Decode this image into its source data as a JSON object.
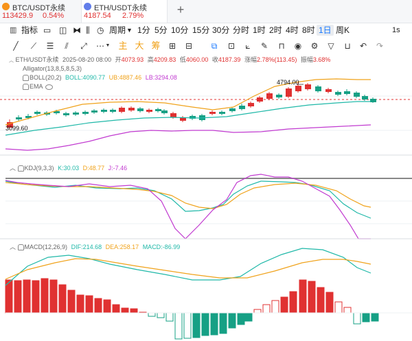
{
  "tabs": [
    {
      "name": "BTC/USDT永续",
      "price": "113429.9",
      "change": "0.54%",
      "active": false
    },
    {
      "name": "ETH/USDT永续",
      "price": "4187.54",
      "change": "2.79%",
      "active": true
    }
  ],
  "toolbar": {
    "indicator": "指标",
    "period": "周期",
    "intervals": [
      "1分",
      "5分",
      "10分",
      "15分",
      "30分",
      "分时",
      "1时",
      "2时",
      "4时",
      "8时",
      "1日",
      "周K"
    ],
    "selected_interval": "1日",
    "right_label": "1s"
  },
  "draw_tools": {
    "main": "主",
    "big": "大",
    "chip": "筹"
  },
  "main_info": {
    "symbol": "ETH/USDT永续",
    "datetime": "2025-08-20 08:00",
    "open_label": "开",
    "open": "4073.93",
    "high_label": "高",
    "high": "4209.83",
    "low_label": "低",
    "low": "4060.00",
    "close_label": "收",
    "close": "4187.39",
    "change_label": "涨幅",
    "change": "2.78%(113.45)",
    "amp_label": "振幅",
    "amp": "3.68%"
  },
  "alligator": {
    "label": "Alligator(13,8,5,8,5,3)"
  },
  "boll": {
    "label": "BOLL(20,2)",
    "boll": "BOLL:4090.77",
    "ub": "UB:4887.46",
    "lb": "LB:3294.08"
  },
  "ema": {
    "label": "EMA"
  },
  "kdj": {
    "label": "KDJ(9,3,3)",
    "k": "K:30.03",
    "d": "D:48.77",
    "j": "J:-7.46"
  },
  "macd": {
    "label": "MACD(12,26,9)",
    "dif": "DIF:214.68",
    "dea": "DEA:258.17",
    "macd": "MACD:-86.99"
  },
  "chart_labels": {
    "high_mark": "4794.00",
    "low_mark": "3099.60"
  },
  "colors": {
    "up": "#e03131",
    "down": "#16a085",
    "accent": "#1677ff"
  }
}
